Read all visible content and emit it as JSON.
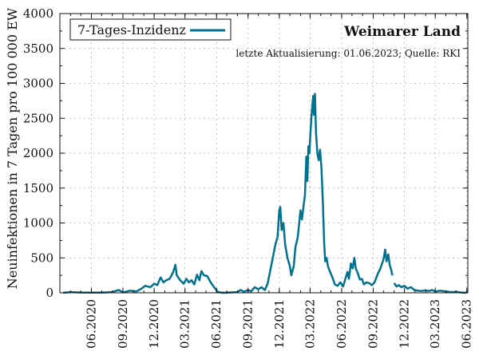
{
  "chart_data": {
    "type": "line",
    "title": "Weimarer Land",
    "subtitle": "letzte Aktualisierung: 01.06.2023; Quelle: RKI",
    "xlabel": "",
    "ylabel": "Neuinfektionen in 7 Tagen pro 100 000 EW",
    "ylim": [
      0,
      4000
    ],
    "xlim": [
      "2020-03-01",
      "2023-06-04"
    ],
    "yticks": [
      0,
      500,
      1000,
      1500,
      2000,
      2500,
      3000,
      3500,
      4000
    ],
    "xticks": [
      {
        "date": "2020-06-01",
        "label": "06.2020"
      },
      {
        "date": "2020-09-01",
        "label": "09.2020"
      },
      {
        "date": "2020-12-01",
        "label": "12.2020"
      },
      {
        "date": "2021-03-01",
        "label": "03.2021"
      },
      {
        "date": "2021-06-01",
        "label": "06.2021"
      },
      {
        "date": "2021-09-01",
        "label": "09.2021"
      },
      {
        "date": "2021-12-01",
        "label": "12.2021"
      },
      {
        "date": "2022-03-01",
        "label": "03.2022"
      },
      {
        "date": "2022-06-01",
        "label": "06.2022"
      },
      {
        "date": "2022-09-01",
        "label": "09.2022"
      },
      {
        "date": "2022-12-01",
        "label": "12.2022"
      },
      {
        "date": "2023-03-01",
        "label": "03.2023"
      },
      {
        "date": "2023-06-01",
        "label": "06.2023"
      }
    ],
    "grid": true,
    "legend": "top-left",
    "series": [
      {
        "name": "7-Tages-Inzidenz",
        "color": "#00728f",
        "points": [
          [
            "2020-03-10",
            0
          ],
          [
            "2020-04-01",
            10
          ],
          [
            "2020-05-01",
            5
          ],
          [
            "2020-06-01",
            2
          ],
          [
            "2020-07-01",
            3
          ],
          [
            "2020-08-01",
            10
          ],
          [
            "2020-08-20",
            40
          ],
          [
            "2020-09-01",
            5
          ],
          [
            "2020-09-20",
            30
          ],
          [
            "2020-10-10",
            20
          ],
          [
            "2020-10-25",
            60
          ],
          [
            "2020-11-05",
            100
          ],
          [
            "2020-11-20",
            80
          ],
          [
            "2020-12-01",
            130
          ],
          [
            "2020-12-10",
            110
          ],
          [
            "2020-12-20",
            220
          ],
          [
            "2020-12-28",
            150
          ],
          [
            "2021-01-05",
            180
          ],
          [
            "2021-01-15",
            200
          ],
          [
            "2021-01-25",
            290
          ],
          [
            "2021-02-01",
            400
          ],
          [
            "2021-02-05",
            250
          ],
          [
            "2021-02-15",
            180
          ],
          [
            "2021-02-25",
            130
          ],
          [
            "2021-03-05",
            200
          ],
          [
            "2021-03-12",
            150
          ],
          [
            "2021-03-20",
            180
          ],
          [
            "2021-03-28",
            120
          ],
          [
            "2021-04-05",
            260
          ],
          [
            "2021-04-12",
            180
          ],
          [
            "2021-04-18",
            310
          ],
          [
            "2021-04-25",
            250
          ],
          [
            "2021-05-05",
            240
          ],
          [
            "2021-05-15",
            150
          ],
          [
            "2021-05-25",
            80
          ],
          [
            "2021-06-05",
            10
          ],
          [
            "2021-06-20",
            0
          ],
          [
            "2021-07-10",
            5
          ],
          [
            "2021-08-01",
            10
          ],
          [
            "2021-08-10",
            40
          ],
          [
            "2021-08-20",
            15
          ],
          [
            "2021-09-01",
            40
          ],
          [
            "2021-09-10",
            20
          ],
          [
            "2021-09-20",
            80
          ],
          [
            "2021-10-01",
            50
          ],
          [
            "2021-10-10",
            80
          ],
          [
            "2021-10-20",
            40
          ],
          [
            "2021-10-28",
            130
          ],
          [
            "2021-11-05",
            330
          ],
          [
            "2021-11-12",
            500
          ],
          [
            "2021-11-20",
            700
          ],
          [
            "2021-11-26",
            800
          ],
          [
            "2021-12-01",
            1180
          ],
          [
            "2021-12-04",
            1230
          ],
          [
            "2021-12-08",
            900
          ],
          [
            "2021-12-13",
            1000
          ],
          [
            "2021-12-18",
            700
          ],
          [
            "2021-12-25",
            500
          ],
          [
            "2022-01-01",
            380
          ],
          [
            "2022-01-05",
            250
          ],
          [
            "2022-01-12",
            380
          ],
          [
            "2022-01-17",
            650
          ],
          [
            "2022-01-24",
            800
          ],
          [
            "2022-02-01",
            1180
          ],
          [
            "2022-02-05",
            1050
          ],
          [
            "2022-02-10",
            1250
          ],
          [
            "2022-02-14",
            1400
          ],
          [
            "2022-02-18",
            1950
          ],
          [
            "2022-02-21",
            1600
          ],
          [
            "2022-02-24",
            2100
          ],
          [
            "2022-02-27",
            2000
          ],
          [
            "2022-03-02",
            2300
          ],
          [
            "2022-03-06",
            2600
          ],
          [
            "2022-03-10",
            2820
          ],
          [
            "2022-03-12",
            2550
          ],
          [
            "2022-03-15",
            2850
          ],
          [
            "2022-03-18",
            2300
          ],
          [
            "2022-03-22",
            2000
          ],
          [
            "2022-03-26",
            1900
          ],
          [
            "2022-03-30",
            2050
          ],
          [
            "2022-04-03",
            1800
          ],
          [
            "2022-04-07",
            1300
          ],
          [
            "2022-04-11",
            700
          ],
          [
            "2022-04-14",
            450
          ],
          [
            "2022-04-18",
            500
          ],
          [
            "2022-04-22",
            380
          ],
          [
            "2022-04-28",
            300
          ],
          [
            "2022-05-05",
            220
          ],
          [
            "2022-05-12",
            120
          ],
          [
            "2022-05-20",
            100
          ],
          [
            "2022-05-28",
            150
          ],
          [
            "2022-06-05",
            90
          ],
          [
            "2022-06-10",
            170
          ],
          [
            "2022-06-18",
            300
          ],
          [
            "2022-06-22",
            200
          ],
          [
            "2022-06-28",
            420
          ],
          [
            "2022-07-03",
            350
          ],
          [
            "2022-07-08",
            500
          ],
          [
            "2022-07-12",
            350
          ],
          [
            "2022-07-18",
            280
          ],
          [
            "2022-07-24",
            190
          ],
          [
            "2022-07-30",
            200
          ],
          [
            "2022-08-05",
            120
          ],
          [
            "2022-08-12",
            150
          ],
          [
            "2022-08-20",
            140
          ],
          [
            "2022-08-28",
            110
          ],
          [
            "2022-09-05",
            150
          ],
          [
            "2022-09-15",
            280
          ],
          [
            "2022-09-22",
            350
          ],
          [
            "2022-10-01",
            480
          ],
          [
            "2022-10-06",
            620
          ],
          [
            "2022-10-10",
            450
          ],
          [
            "2022-10-15",
            550
          ],
          [
            "2022-10-19",
            400
          ],
          [
            "2022-10-24",
            320
          ],
          [
            "2022-10-27",
            250
          ]
        ]
      },
      {
        "name": "",
        "color": "#00728f",
        "points": [
          [
            "2022-11-01",
            140
          ],
          [
            "2022-11-08",
            90
          ],
          [
            "2022-11-15",
            110
          ],
          [
            "2022-11-22",
            80
          ],
          [
            "2022-12-01",
            100
          ],
          [
            "2022-12-10",
            60
          ],
          [
            "2022-12-20",
            80
          ],
          [
            "2022-12-30",
            40
          ],
          [
            "2023-01-10",
            30
          ],
          [
            "2023-01-20",
            25
          ],
          [
            "2023-02-01",
            35
          ],
          [
            "2023-02-10",
            25
          ],
          [
            "2023-02-20",
            40
          ],
          [
            "2023-03-01",
            20
          ],
          [
            "2023-03-15",
            30
          ],
          [
            "2023-04-01",
            20
          ],
          [
            "2023-04-15",
            10
          ],
          [
            "2023-05-01",
            15
          ],
          [
            "2023-05-15",
            5
          ],
          [
            "2023-06-01",
            0
          ]
        ]
      }
    ]
  }
}
